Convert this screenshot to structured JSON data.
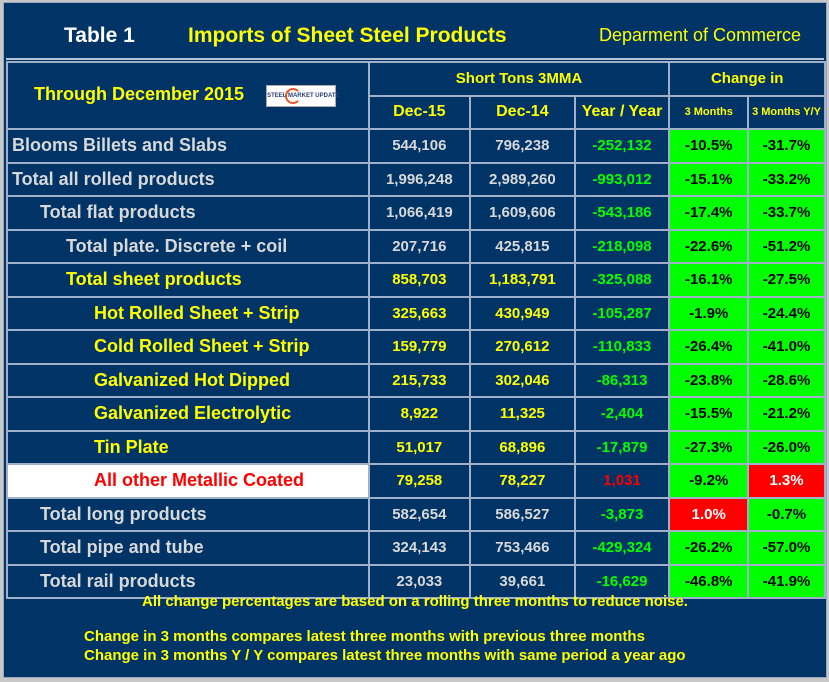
{
  "title": {
    "table_no": "Table 1",
    "name": "Imports of Sheet Steel Products",
    "source": "Deparment of Commerce"
  },
  "header": {
    "period": "Through December 2015",
    "logo_text": "STEEL MARKET UPDATE",
    "group1": "Short Tons 3MMA",
    "group2": "Change in",
    "cols": [
      "Dec-15",
      "Dec-14",
      "Year / Year",
      "3 Months",
      "3 Months Y/Y"
    ]
  },
  "colors": {
    "background": "#003366",
    "positive_highlight": "#ff0000",
    "negative_highlight": "#00ff00",
    "yellow_text": "#ffff00"
  },
  "rows": [
    {
      "label": "Blooms Billets and Slabs",
      "indent": 0,
      "style": "gray",
      "dec15": "544,106",
      "dec14": "796,238",
      "yoy": "-252,132",
      "m3": "-10.5%",
      "m3yy": "-31.7%"
    },
    {
      "label": "Total all rolled products",
      "indent": 0,
      "style": "gray",
      "dec15": "1,996,248",
      "dec14": "2,989,260",
      "yoy": "-993,012",
      "m3": "-15.1%",
      "m3yy": "-33.2%"
    },
    {
      "label": "Total flat products",
      "indent": 1,
      "style": "gray",
      "dec15": "1,066,419",
      "dec14": "1,609,606",
      "yoy": "-543,186",
      "m3": "-17.4%",
      "m3yy": "-33.7%"
    },
    {
      "label": "Total plate. Discrete + coil",
      "indent": 2,
      "style": "gray",
      "dec15": "207,716",
      "dec14": "425,815",
      "yoy": "-218,098",
      "m3": "-22.6%",
      "m3yy": "-51.2%"
    },
    {
      "label": "Total sheet products",
      "indent": 2,
      "style": "yellow",
      "dec15": "858,703",
      "dec14": "1,183,791",
      "yoy": "-325,088",
      "m3": "-16.1%",
      "m3yy": "-27.5%"
    },
    {
      "label": "Hot Rolled Sheet + Strip",
      "indent": 3,
      "style": "yellow",
      "dec15": "325,663",
      "dec14": "430,949",
      "yoy": "-105,287",
      "m3": "-1.9%",
      "m3yy": "-24.4%"
    },
    {
      "label": "Cold Rolled Sheet + Strip",
      "indent": 3,
      "style": "yellow",
      "dec15": "159,779",
      "dec14": "270,612",
      "yoy": "-110,833",
      "m3": "-26.4%",
      "m3yy": "-41.0%"
    },
    {
      "label": "Galvanized Hot Dipped",
      "indent": 3,
      "style": "yellow",
      "dec15": "215,733",
      "dec14": "302,046",
      "yoy": "-86,313",
      "m3": "-23.8%",
      "m3yy": "-28.6%"
    },
    {
      "label": "Galvanized Electrolytic",
      "indent": 3,
      "style": "yellow",
      "dec15": "8,922",
      "dec14": "11,325",
      "yoy": "-2,404",
      "m3": "-15.5%",
      "m3yy": "-21.2%"
    },
    {
      "label": "Tin Plate",
      "indent": 3,
      "style": "yellow",
      "dec15": "51,017",
      "dec14": "68,896",
      "yoy": "-17,879",
      "m3": "-27.3%",
      "m3yy": "-26.0%"
    },
    {
      "label": "All other Metallic Coated",
      "indent": 3,
      "style": "highlight",
      "dec15": "79,258",
      "dec14": "78,227",
      "yoy": "1,031",
      "m3": "-9.2%",
      "m3yy": "1.3%"
    },
    {
      "label": "Total long products",
      "indent": 1,
      "style": "gray",
      "dec15": "582,654",
      "dec14": "586,527",
      "yoy": "-3,873",
      "m3": "1.0%",
      "m3yy": "-0.7%"
    },
    {
      "label": "Total pipe and tube",
      "indent": 1,
      "style": "gray",
      "dec15": "324,143",
      "dec14": "753,466",
      "yoy": "-429,324",
      "m3": "-26.2%",
      "m3yy": "-57.0%"
    },
    {
      "label": "Total rail products",
      "indent": 1,
      "style": "gray",
      "dec15": "23,033",
      "dec14": "39,661",
      "yoy": "-16,629",
      "m3": "-46.8%",
      "m3yy": "-41.9%"
    }
  ],
  "footer": {
    "note1": "All change percentages are based on a rolling three months to reduce noise.",
    "note2": "Change in 3 months compares latest three months with previous three months",
    "note3": "Change in 3 months  Y / Y compares latest three months with same period a year ago"
  }
}
